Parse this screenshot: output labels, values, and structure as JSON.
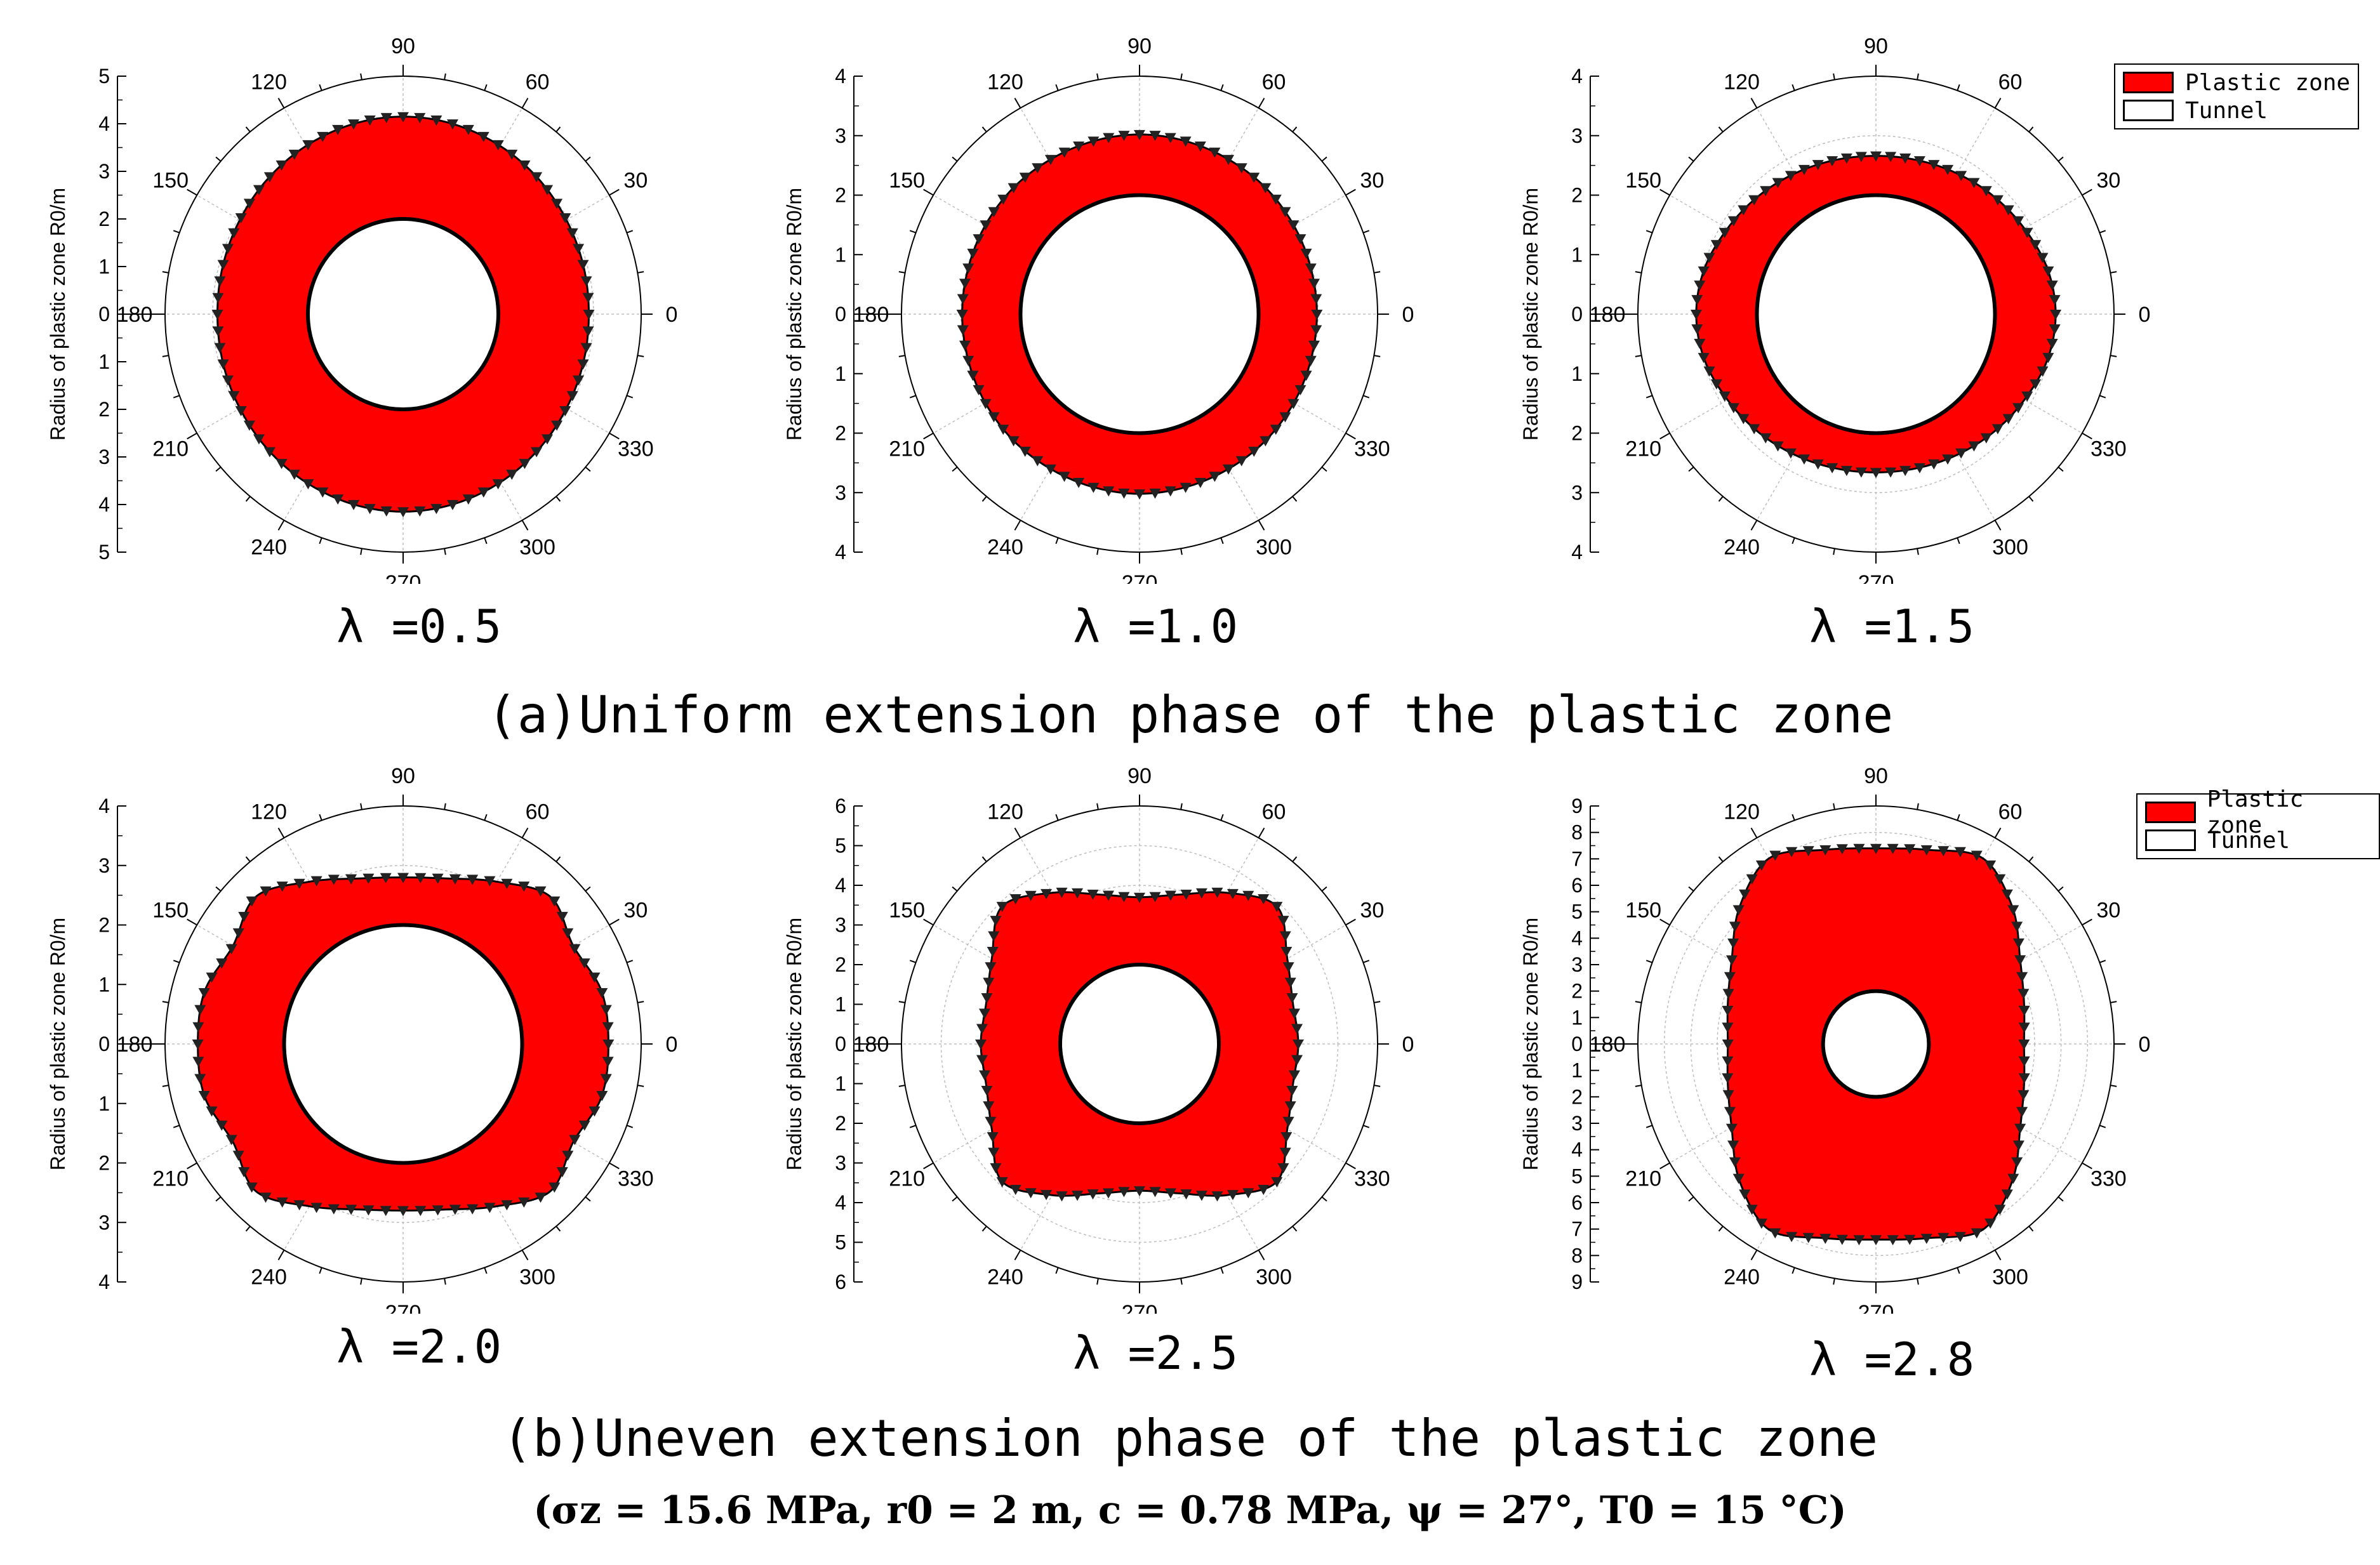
{
  "captions": {
    "a": "(a)Uniform extension phase of the plastic zone",
    "b": "(b)Uneven extension phase of the plastic zone",
    "params": "(σz = 15.6 MPa, r0 = 2 m, c = 0.78 MPa, ψ = 27°, T0 = 15 °C)"
  },
  "legend": {
    "plastic": "Plastic zone",
    "tunnel": "Tunnel"
  },
  "colors": {
    "plastic": "#ff0000",
    "tunnel": "#ffffff",
    "outline": "#000000"
  },
  "chart_data": [
    {
      "type": "polar-area",
      "lambda_label": "λ =0.5",
      "ylabel": "Radius of plastic zone R0/m",
      "rmax": 5,
      "tunnel_radius": 2,
      "angle_ticks": [
        "0",
        "30",
        "60",
        "90",
        "120",
        "150",
        "180",
        "210",
        "240",
        "270",
        "300",
        "330"
      ],
      "theta_deg": [
        0,
        15,
        30,
        45,
        60,
        75,
        90,
        105,
        120,
        135,
        150,
        165,
        180,
        195,
        210,
        225,
        240,
        255,
        270,
        285,
        300,
        315,
        330,
        345
      ],
      "plastic_radius": [
        3.9,
        3.92,
        3.96,
        4.02,
        4.08,
        4.13,
        4.15,
        4.13,
        4.08,
        4.02,
        3.96,
        3.92,
        3.9,
        3.92,
        3.96,
        4.02,
        4.08,
        4.13,
        4.15,
        4.13,
        4.08,
        4.02,
        3.96,
        3.92
      ]
    },
    {
      "type": "polar-area",
      "lambda_label": "λ =1.0",
      "ylabel": "Radius of plastic zone R0/m",
      "rmax": 4,
      "tunnel_radius": 2,
      "angle_ticks": [
        "0",
        "30",
        "60",
        "90",
        "120",
        "150",
        "180",
        "210",
        "240",
        "270",
        "300",
        "330"
      ],
      "theta_deg": [
        0,
        15,
        30,
        45,
        60,
        75,
        90,
        105,
        120,
        135,
        150,
        165,
        180,
        195,
        210,
        225,
        240,
        255,
        270,
        285,
        300,
        315,
        330,
        345
      ],
      "plastic_radius": [
        2.98,
        2.98,
        2.99,
        3.0,
        3.0,
        3.01,
        3.02,
        3.01,
        3.0,
        3.0,
        2.99,
        2.98,
        2.98,
        2.98,
        2.99,
        3.0,
        3.0,
        3.01,
        3.02,
        3.01,
        3.0,
        3.0,
        2.99,
        2.98
      ]
    },
    {
      "type": "polar-area",
      "lambda_label": "λ =1.5",
      "ylabel": "Radius of plastic zone R0/m",
      "rmax": 4,
      "tunnel_radius": 2,
      "angle_ticks": [
        "0",
        "30",
        "60",
        "90",
        "120",
        "150",
        "180",
        "210",
        "240",
        "270",
        "300",
        "330"
      ],
      "theta_deg": [
        0,
        15,
        30,
        45,
        60,
        75,
        90,
        105,
        120,
        135,
        150,
        165,
        180,
        195,
        210,
        225,
        240,
        255,
        270,
        285,
        300,
        315,
        330,
        345
      ],
      "plastic_radius": [
        3.02,
        2.98,
        2.88,
        2.8,
        2.73,
        2.68,
        2.66,
        2.68,
        2.73,
        2.8,
        2.88,
        2.98,
        3.02,
        2.98,
        2.88,
        2.8,
        2.73,
        2.68,
        2.66,
        2.68,
        2.73,
        2.8,
        2.88,
        2.98
      ]
    },
    {
      "type": "polar-area",
      "lambda_label": "λ =2.0",
      "ylabel": "Radius of plastic zone R0/m",
      "rmax": 4,
      "tunnel_radius": 2,
      "angle_ticks": [
        "0",
        "30",
        "60",
        "90",
        "120",
        "150",
        "180",
        "210",
        "240",
        "270",
        "300",
        "330"
      ],
      "theta_deg": [
        0,
        15,
        30,
        45,
        60,
        75,
        90,
        105,
        120,
        135,
        150,
        165,
        180,
        195,
        210,
        225,
        240,
        255,
        270,
        285,
        300,
        315,
        330,
        345
      ],
      "plastic_radius": [
        3.45,
        3.45,
        3.3,
        3.5,
        3.15,
        2.88,
        2.8,
        2.88,
        3.15,
        3.5,
        3.3,
        3.45,
        3.45,
        3.45,
        3.3,
        3.5,
        3.15,
        2.88,
        2.8,
        2.88,
        3.15,
        3.5,
        3.3,
        3.45
      ]
    },
    {
      "type": "polar-area",
      "lambda_label": "λ =2.5",
      "ylabel": "Radius of plastic zone R0/m",
      "rmax": 6,
      "tunnel_radius": 2,
      "angle_ticks": [
        "0",
        "30",
        "60",
        "90",
        "120",
        "150",
        "180",
        "210",
        "240",
        "270",
        "300",
        "330"
      ],
      "theta_deg": [
        0,
        15,
        30,
        45,
        60,
        75,
        90,
        105,
        120,
        135,
        150,
        165,
        180,
        195,
        210,
        225,
        240,
        255,
        270,
        285,
        300,
        315,
        330,
        345
      ],
      "plastic_radius": [
        4.0,
        4.0,
        4.3,
        4.9,
        4.4,
        3.9,
        3.7,
        3.9,
        4.4,
        4.9,
        4.3,
        4.0,
        4.0,
        4.0,
        4.3,
        4.9,
        4.4,
        3.9,
        3.7,
        3.9,
        4.4,
        4.9,
        4.3,
        4.0
      ]
    },
    {
      "type": "polar-area",
      "lambda_label": "λ =2.8",
      "ylabel": "Radius of plastic zone R0/m",
      "rmax": 9,
      "tunnel_radius": 2,
      "angle_ticks": [
        "0",
        "30",
        "60",
        "90",
        "120",
        "150",
        "180",
        "210",
        "240",
        "270",
        "300",
        "330"
      ],
      "theta_deg": [
        0,
        15,
        30,
        45,
        60,
        75,
        90,
        105,
        120,
        135,
        150,
        165,
        180,
        195,
        210,
        225,
        240,
        255,
        270,
        285,
        300,
        315,
        330,
        345
      ],
      "plastic_radius": [
        5.6,
        5.8,
        6.3,
        7.3,
        8.1,
        7.6,
        7.4,
        7.6,
        8.1,
        7.3,
        6.3,
        5.8,
        5.6,
        5.8,
        6.3,
        7.3,
        8.1,
        7.6,
        7.4,
        7.6,
        8.1,
        7.3,
        6.3,
        5.8
      ]
    }
  ]
}
